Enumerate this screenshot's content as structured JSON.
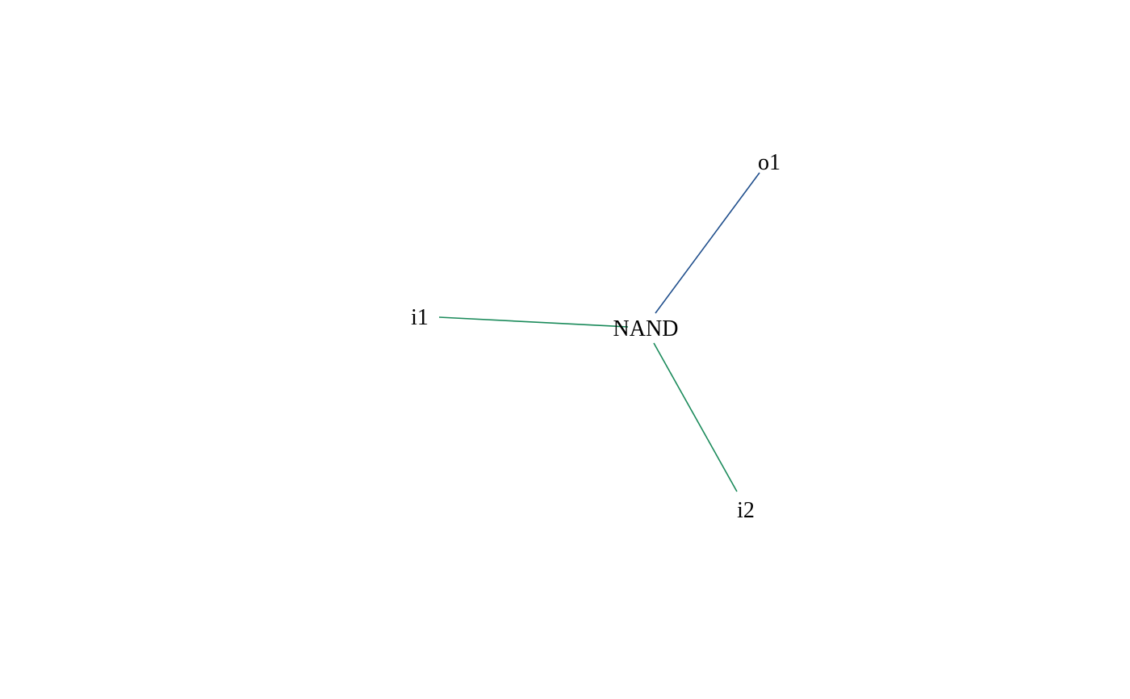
{
  "diagram": {
    "nodes": [
      {
        "id": "nand",
        "label": "NAND"
      },
      {
        "id": "o1",
        "label": "o1"
      },
      {
        "id": "i1",
        "label": "i1"
      },
      {
        "id": "i2",
        "label": "i2"
      }
    ],
    "edges": [
      {
        "from": "nand",
        "to": "o1",
        "color": "#1f4e8c"
      },
      {
        "from": "i1",
        "to": "nand",
        "color": "#1a8a5a"
      },
      {
        "from": "i2",
        "to": "nand",
        "color": "#1a8a5a"
      }
    ]
  }
}
